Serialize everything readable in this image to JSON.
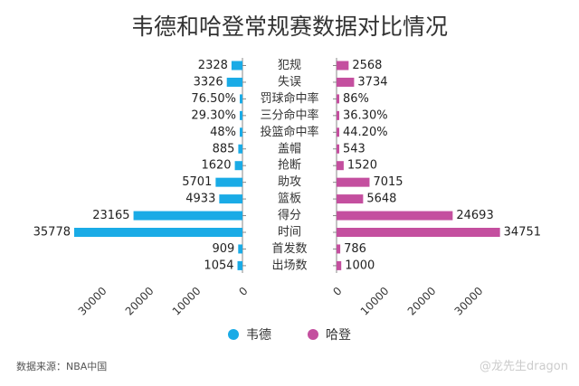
{
  "chart_data": {
    "type": "bar",
    "orientation": "horizontal-butterfly",
    "title": "韦德和哈登常规赛数据对比情况",
    "categories": [
      "犯规",
      "失误",
      "罚球命中率",
      "三分命中率",
      "投篮命中率",
      "盖帽",
      "抢断",
      "助攻",
      "篮板",
      "得分",
      "时间",
      "首发数",
      "出场数"
    ],
    "series": [
      {
        "name": "韦德",
        "color": "#1aabe6",
        "values": [
          2328,
          3326,
          76.5,
          29.3,
          48,
          885,
          1620,
          5701,
          4933,
          23165,
          35778,
          909,
          1054
        ],
        "labels": [
          "2328",
          "3326",
          "76.50%",
          "29.30%",
          "48%",
          "885",
          "1620",
          "5701",
          "4933",
          "23165",
          "35778",
          "909",
          "1054"
        ]
      },
      {
        "name": "哈登",
        "color": "#c44f9f",
        "values": [
          2568,
          3734,
          86,
          36.3,
          44.2,
          543,
          1520,
          7015,
          5648,
          24693,
          34751,
          786,
          1000
        ],
        "labels": [
          "2568",
          "3734",
          "86%",
          "36.30%",
          "44.20%",
          "543",
          "1520",
          "7015",
          "5648",
          "24693",
          "34751",
          "786",
          "1000"
        ]
      }
    ],
    "axis_ticks": [
      0,
      10000,
      20000,
      30000
    ],
    "xlim": [
      0,
      36000
    ],
    "grid": false,
    "legend_position": "bottom"
  },
  "source_text": "数据来源：NBA中国",
  "watermark_text": "@龙先生dragon"
}
